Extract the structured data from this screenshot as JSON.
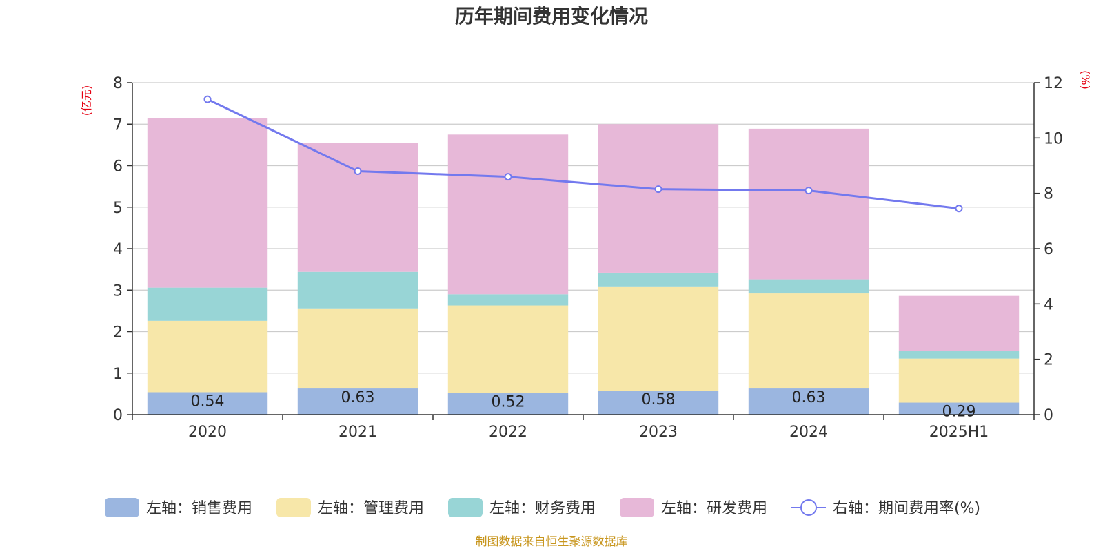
{
  "chart_data": {
    "type": "bar",
    "title": "历年期间费用变化情况",
    "categories": [
      "2020",
      "2021",
      "2022",
      "2023",
      "2024",
      "2025H1"
    ],
    "left_axis": {
      "unit": "(亿元)",
      "ylim": [
        0,
        8
      ],
      "ticks": [
        "0",
        "1",
        "2",
        "3",
        "4",
        "5",
        "6",
        "7",
        "8"
      ]
    },
    "right_axis": {
      "unit": "(%)",
      "ylim": [
        0,
        12
      ],
      "ticks": [
        "0",
        "2",
        "4",
        "6",
        "8",
        "10",
        "12"
      ]
    },
    "series": [
      {
        "name": "左轴：销售费用",
        "type": "bar",
        "stack": true,
        "color": "#9bb6e0",
        "values": [
          0.54,
          0.63,
          0.52,
          0.58,
          0.63,
          0.29
        ],
        "labels": [
          "0.54",
          "0.63",
          "0.52",
          "0.58",
          "0.63",
          "0.29"
        ]
      },
      {
        "name": "左轴：管理费用",
        "type": "bar",
        "stack": true,
        "color": "#f7e7a9",
        "values": [
          1.72,
          1.93,
          2.11,
          2.51,
          2.29,
          1.06
        ]
      },
      {
        "name": "左轴：财务费用",
        "type": "bar",
        "stack": true,
        "color": "#98d5d6",
        "values": [
          0.8,
          0.88,
          0.27,
          0.33,
          0.34,
          0.18
        ]
      },
      {
        "name": "左轴：研发费用",
        "type": "bar",
        "stack": true,
        "color": "#e7b8d8",
        "values": [
          4.09,
          3.11,
          3.85,
          3.58,
          3.63,
          1.33
        ]
      },
      {
        "name": "右轴：期间费用率(%)",
        "type": "line",
        "axis": "right",
        "color": "#7379ee",
        "values": [
          11.4,
          8.8,
          8.6,
          8.15,
          8.1,
          7.45
        ]
      }
    ],
    "grid": true,
    "legend": "bottom"
  },
  "footer": {
    "source": "制图数据来自恒生聚源数据库"
  }
}
